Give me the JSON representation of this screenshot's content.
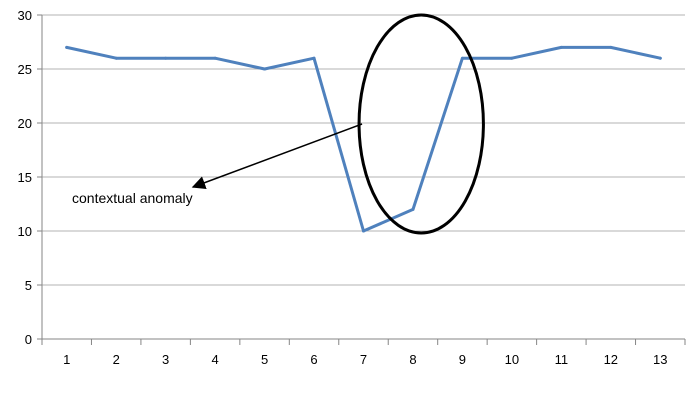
{
  "chart_data": {
    "type": "line",
    "x": [
      1,
      2,
      3,
      4,
      5,
      6,
      7,
      8,
      9,
      10,
      11,
      12,
      13
    ],
    "series": [
      {
        "values": [
          27,
          26,
          26,
          26,
          25,
          26,
          10,
          12,
          26,
          26,
          27,
          27,
          26
        ],
        "color": "#4f81bd"
      }
    ],
    "categories": [
      "1",
      "2",
      "3",
      "4",
      "5",
      "6",
      "7",
      "8",
      "9",
      "10",
      "11",
      "12",
      "13"
    ],
    "ylim": [
      0,
      30
    ],
    "yticks": [
      0,
      5,
      10,
      15,
      20,
      25,
      30
    ],
    "ytick_labels": [
      "0",
      "5",
      "10",
      "15",
      "20",
      "25",
      "30"
    ],
    "grid": "horizontal",
    "legend": "none",
    "annotation": {
      "text": "contextual anomaly",
      "highlight_shape": "ellipse",
      "highlight_x_range": [
        6,
        9
      ],
      "arrow": true
    },
    "colors": {
      "line": "#4f81bd",
      "grid": "#b3b3b3",
      "axis": "#868686",
      "annotation": "#000000"
    }
  }
}
